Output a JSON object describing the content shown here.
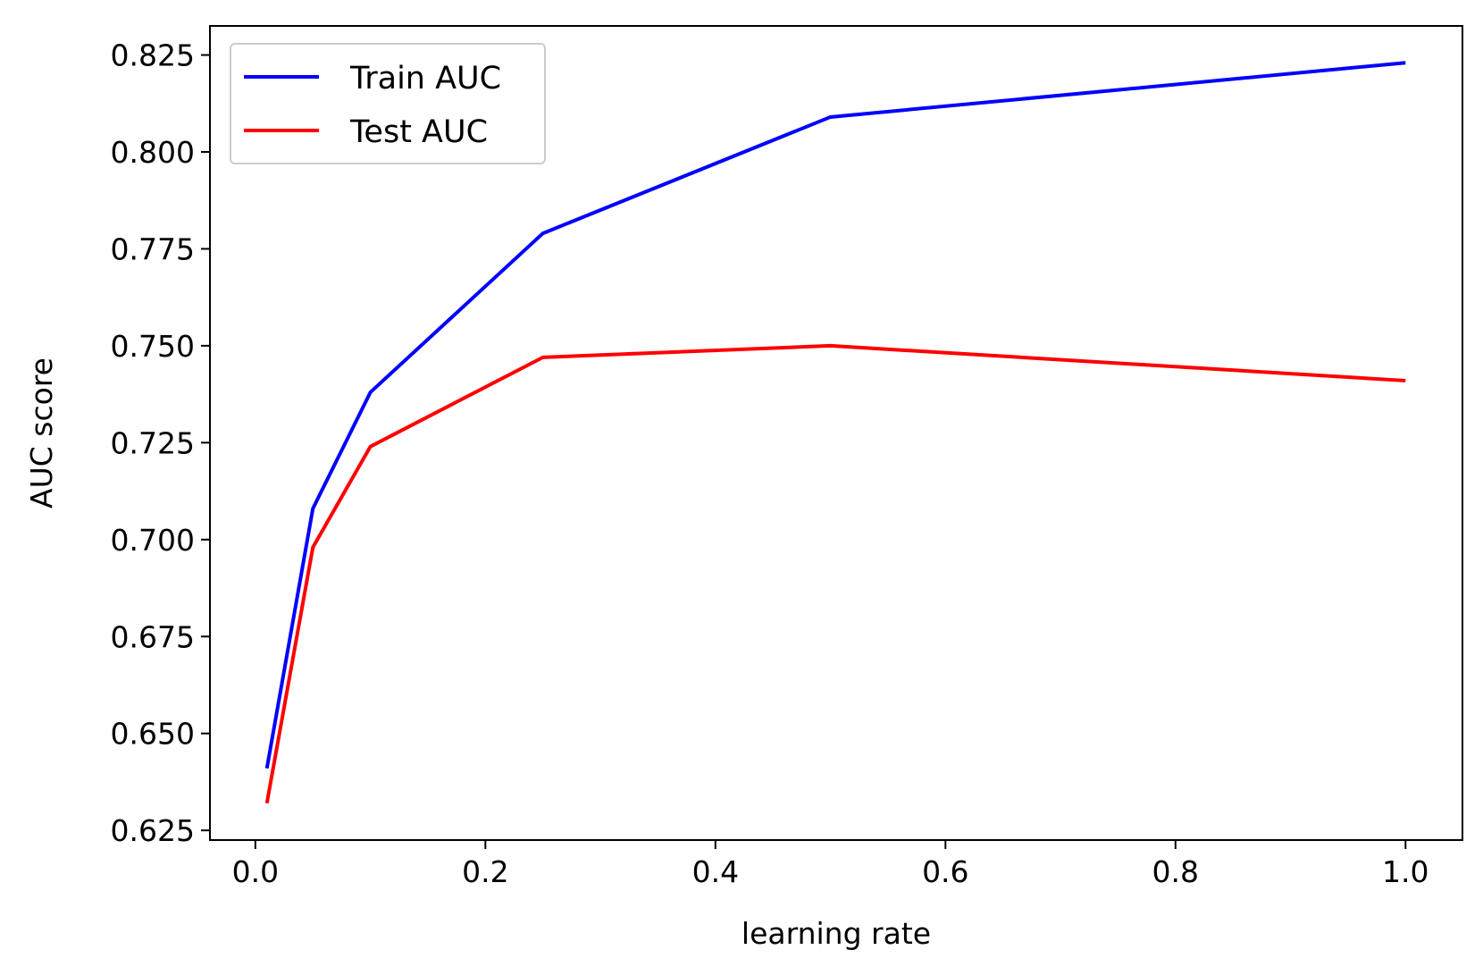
{
  "chart_data": {
    "type": "line",
    "title": "",
    "xlabel": "learning rate",
    "ylabel": "AUC score",
    "x": [
      0.01,
      0.05,
      0.1,
      0.25,
      0.5,
      1.0
    ],
    "series": [
      {
        "name": "Train AUC",
        "color": "#0000ff",
        "values": [
          0.641,
          0.708,
          0.738,
          0.779,
          0.809,
          0.823
        ]
      },
      {
        "name": "Test AUC",
        "color": "#ff0000",
        "values": [
          0.632,
          0.698,
          0.724,
          0.747,
          0.75,
          0.741
        ]
      }
    ],
    "xlim": [
      -0.0395,
      1.0495
    ],
    "ylim": [
      0.6225,
      0.8325
    ],
    "xticks": [
      0.0,
      0.2,
      0.4,
      0.6,
      0.8,
      1.0
    ],
    "xtick_labels": [
      "0.0",
      "0.2",
      "0.4",
      "0.6",
      "0.8",
      "1.0"
    ],
    "yticks": [
      0.625,
      0.65,
      0.675,
      0.7,
      0.725,
      0.75,
      0.775,
      0.8,
      0.825
    ],
    "ytick_labels": [
      "0.625",
      "0.650",
      "0.675",
      "0.700",
      "0.725",
      "0.750",
      "0.775",
      "0.800",
      "0.825"
    ],
    "grid": false,
    "legend_position": "top-left"
  }
}
